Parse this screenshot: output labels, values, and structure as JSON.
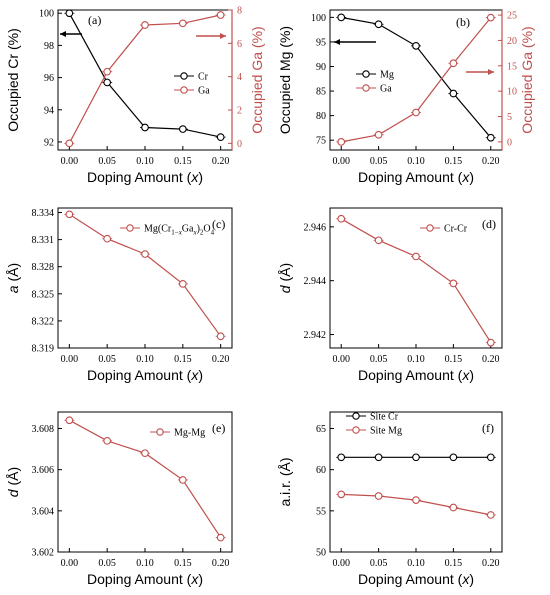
{
  "colors": {
    "black": "#000000",
    "red": "#c0504d"
  },
  "chart_data": [
    {
      "panel": "(a)",
      "type": "line",
      "x": [
        0.0,
        0.05,
        0.1,
        0.15,
        0.2
      ],
      "xticks": [
        "0.00",
        "0.05",
        "0.10",
        "0.15",
        "0.20"
      ],
      "xlabel": "Doping Amount (x)",
      "xlim": [
        -0.015,
        0.215
      ],
      "ylabel": "Occupied Cr (%)",
      "ylim": [
        91.5,
        100.2
      ],
      "yticks": [
        "92",
        "94",
        "96",
        "98",
        "100"
      ],
      "ytick_values": [
        92,
        94,
        96,
        98,
        100
      ],
      "y2label": "Occupied Ga (%)",
      "y2lim": [
        -0.4,
        8
      ],
      "y2ticks": [
        "0",
        "2",
        "4",
        "6",
        "8"
      ],
      "y2tick_values": [
        0,
        2,
        4,
        6,
        8
      ],
      "series": [
        {
          "name": "Cr",
          "color": "#000000",
          "axis": "left",
          "values": [
            100.0,
            95.7,
            92.9,
            92.8,
            92.3
          ]
        },
        {
          "name": "Ga",
          "color": "#c0504d",
          "axis": "right",
          "values": [
            0.0,
            4.3,
            7.1,
            7.2,
            7.7
          ]
        }
      ],
      "legend": "right",
      "arrows": [
        "left",
        "right"
      ]
    },
    {
      "panel": "(b)",
      "type": "line",
      "x": [
        0.0,
        0.05,
        0.1,
        0.15,
        0.2
      ],
      "xticks": [
        "0.00",
        "0.05",
        "0.10",
        "0.15",
        "0.20"
      ],
      "xlabel": "Doping Amount (x)",
      "xlim": [
        -0.015,
        0.215
      ],
      "ylabel": "Occupied Mg (%)",
      "ylim": [
        73,
        101.5
      ],
      "yticks": [
        "75",
        "80",
        "85",
        "90",
        "95",
        "100"
      ],
      "ytick_values": [
        75,
        80,
        85,
        90,
        95,
        100
      ],
      "y2label": "Occupied Ga (%)",
      "y2lim": [
        -1.6,
        26
      ],
      "y2ticks": [
        "0",
        "5",
        "10",
        "15",
        "20",
        "25"
      ],
      "y2tick_values": [
        0,
        5,
        10,
        15,
        20,
        25
      ],
      "series": [
        {
          "name": "Mg",
          "color": "#000000",
          "axis": "left",
          "values": [
            100.0,
            98.6,
            94.2,
            84.5,
            75.5
          ]
        },
        {
          "name": "Ga",
          "color": "#c0504d",
          "axis": "right",
          "values": [
            0.0,
            1.4,
            5.8,
            15.5,
            24.5
          ]
        }
      ],
      "legend": "left",
      "arrows": [
        "left",
        "right"
      ]
    },
    {
      "panel": "(c)",
      "type": "line",
      "x": [
        0.0,
        0.05,
        0.1,
        0.15,
        0.2
      ],
      "xticks": [
        "0.00",
        "0.05",
        "0.10",
        "0.15",
        "0.20"
      ],
      "xlabel": "Doping Amount (x)",
      "xlim": [
        -0.015,
        0.215
      ],
      "ylabel": "a (Å)",
      "ylim": [
        8.319,
        8.3345
      ],
      "yticks": [
        "8.319",
        "8.322",
        "8.325",
        "8.328",
        "8.331",
        "8.334"
      ],
      "ytick_values": [
        8.319,
        8.322,
        8.325,
        8.328,
        8.331,
        8.334
      ],
      "series": [
        {
          "name": "Mg(Cr1-xGax)2O4",
          "color": "#c0504d",
          "axis": "left",
          "values": [
            8.3338,
            8.3311,
            8.3294,
            8.3261,
            8.3203
          ]
        }
      ],
      "legend": "top-right"
    },
    {
      "panel": "(d)",
      "type": "line",
      "x": [
        0.0,
        0.05,
        0.1,
        0.15,
        0.2
      ],
      "xticks": [
        "0.00",
        "0.05",
        "0.10",
        "0.15",
        "0.20"
      ],
      "xlabel": "Doping Amount (x)",
      "xlim": [
        -0.015,
        0.215
      ],
      "ylabel": "d (Å)",
      "ylim": [
        2.9415,
        2.9467
      ],
      "yticks": [
        "2.942",
        "2.944",
        "2.946"
      ],
      "ytick_values": [
        2.942,
        2.944,
        2.946
      ],
      "series": [
        {
          "name": "Cr-Cr",
          "color": "#c0504d",
          "axis": "left",
          "values": [
            2.9463,
            2.9455,
            2.9449,
            2.9439,
            2.9417
          ]
        }
      ],
      "legend": "top-right"
    },
    {
      "panel": "(e)",
      "type": "line",
      "x": [
        0.0,
        0.05,
        0.1,
        0.15,
        0.2
      ],
      "xticks": [
        "0.00",
        "0.05",
        "0.10",
        "0.15",
        "0.20"
      ],
      "xlabel": "Doping Amount (x)",
      "xlim": [
        -0.015,
        0.215
      ],
      "ylabel": "d (Å)",
      "ylim": [
        3.602,
        3.6088
      ],
      "yticks": [
        "3.602",
        "3.604",
        "3.606",
        "3.608"
      ],
      "ytick_values": [
        3.602,
        3.604,
        3.606,
        3.608
      ],
      "series": [
        {
          "name": "Mg-Mg",
          "color": "#c0504d",
          "axis": "left",
          "values": [
            3.6084,
            3.6074,
            3.6068,
            3.6055,
            3.6027
          ]
        }
      ],
      "legend": "top-right"
    },
    {
      "panel": "(f)",
      "type": "line",
      "x": [
        0.0,
        0.05,
        0.1,
        0.15,
        0.2
      ],
      "xticks": [
        "0.00",
        "0.05",
        "0.10",
        "0.15",
        "0.20"
      ],
      "xlabel": "Doping Amount (x)",
      "xlim": [
        -0.015,
        0.215
      ],
      "ylabel": "a.i.r. (Å)",
      "ylim": [
        50,
        67
      ],
      "yticks": [
        "50",
        "55",
        "60",
        "65"
      ],
      "ytick_values": [
        50,
        55,
        60,
        65
      ],
      "series": [
        {
          "name": "Site Cr",
          "color": "#000000",
          "axis": "left",
          "values": [
            61.5,
            61.5,
            61.5,
            61.5,
            61.5
          ]
        },
        {
          "name": "Site Mg",
          "color": "#c0504d",
          "axis": "left",
          "values": [
            57.0,
            56.8,
            56.3,
            55.4,
            54.5
          ]
        }
      ],
      "legend": "top-left"
    }
  ]
}
